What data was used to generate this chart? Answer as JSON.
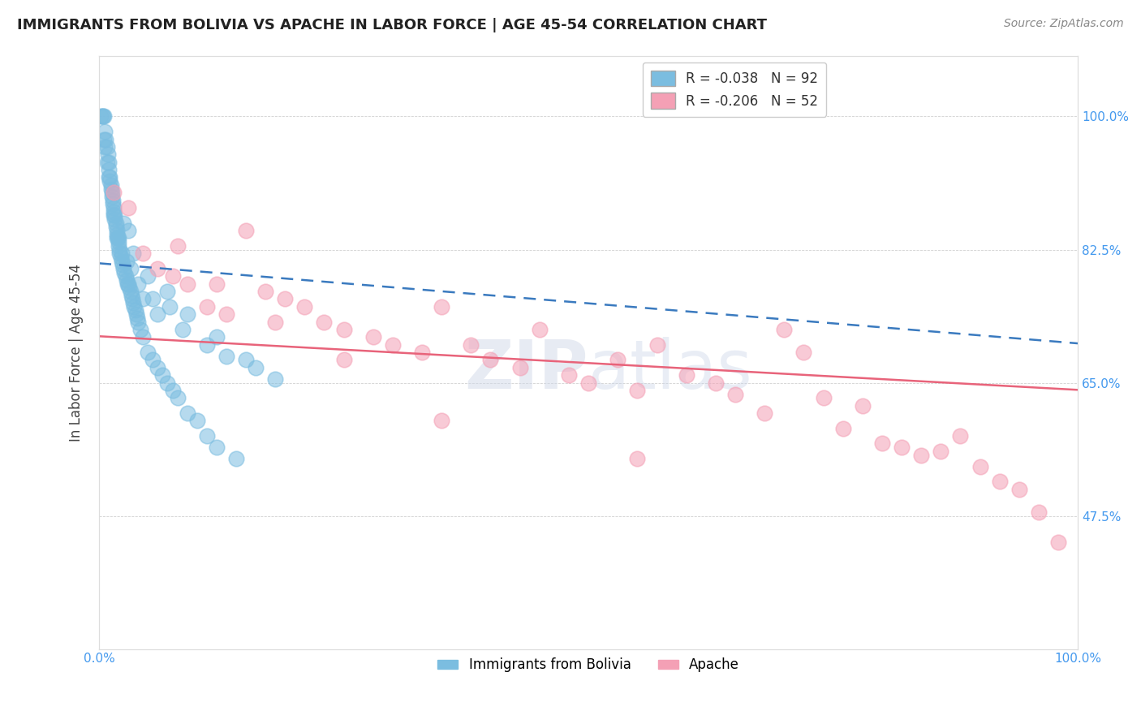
{
  "title": "IMMIGRANTS FROM BOLIVIA VS APACHE IN LABOR FORCE | AGE 45-54 CORRELATION CHART",
  "source": "Source: ZipAtlas.com",
  "ylabel": "In Labor Force | Age 45-54",
  "xlim": [
    0.0,
    100.0
  ],
  "ylim": [
    30.0,
    108.0
  ],
  "y_ticks": [
    47.5,
    65.0,
    82.5,
    100.0
  ],
  "x_ticks": [
    0.0,
    100.0
  ],
  "R_bolivia": -0.038,
  "N_bolivia": 92,
  "R_apache": -0.206,
  "N_apache": 52,
  "blue_color": "#7bbde0",
  "pink_color": "#f4a0b5",
  "blue_line_color": "#3a7abf",
  "pink_line_color": "#e8637a",
  "watermark": "ZIPatlas",
  "legend_labels": [
    "Immigrants from Bolivia",
    "Apache"
  ],
  "bolivia_x": [
    0.2,
    0.3,
    0.4,
    0.5,
    0.6,
    0.7,
    0.8,
    0.9,
    1.0,
    1.0,
    1.1,
    1.1,
    1.2,
    1.2,
    1.3,
    1.3,
    1.4,
    1.4,
    1.5,
    1.5,
    1.6,
    1.6,
    1.7,
    1.7,
    1.8,
    1.8,
    1.9,
    2.0,
    2.0,
    2.1,
    2.1,
    2.2,
    2.3,
    2.4,
    2.5,
    2.6,
    2.7,
    2.8,
    2.9,
    3.0,
    3.1,
    3.2,
    3.3,
    3.4,
    3.5,
    3.6,
    3.7,
    3.8,
    3.9,
    4.0,
    4.2,
    4.5,
    5.0,
    5.5,
    6.0,
    6.5,
    7.0,
    7.5,
    8.0,
    9.0,
    10.0,
    11.0,
    12.0,
    14.0,
    3.0,
    2.5,
    1.5,
    1.0,
    0.8,
    0.6,
    0.5,
    2.0,
    3.5,
    5.0,
    7.0,
    9.0,
    12.0,
    15.0,
    4.5,
    6.0,
    8.5,
    11.0,
    13.0,
    16.0,
    18.0,
    4.0,
    2.3,
    1.8,
    3.2,
    2.8,
    5.5,
    7.2
  ],
  "bolivia_y": [
    100.0,
    100.0,
    100.0,
    100.0,
    98.0,
    97.0,
    96.0,
    95.0,
    94.0,
    93.0,
    92.0,
    91.5,
    91.0,
    90.5,
    90.0,
    89.5,
    89.0,
    88.5,
    88.0,
    87.5,
    87.0,
    86.5,
    86.0,
    85.5,
    85.0,
    84.5,
    84.0,
    83.5,
    83.0,
    82.5,
    82.0,
    81.5,
    81.0,
    80.5,
    80.0,
    79.5,
    79.0,
    78.5,
    78.0,
    78.0,
    77.5,
    77.0,
    76.5,
    76.0,
    75.5,
    75.0,
    74.5,
    74.0,
    73.5,
    73.0,
    72.0,
    71.0,
    69.0,
    68.0,
    67.0,
    66.0,
    65.0,
    64.0,
    63.0,
    61.0,
    60.0,
    58.0,
    56.5,
    55.0,
    85.0,
    86.0,
    87.0,
    92.0,
    94.0,
    96.0,
    97.0,
    84.0,
    82.0,
    79.0,
    77.0,
    74.0,
    71.0,
    68.0,
    76.0,
    74.0,
    72.0,
    70.0,
    68.5,
    67.0,
    65.5,
    78.0,
    82.0,
    84.0,
    80.0,
    81.0,
    76.0,
    75.0
  ],
  "apache_x": [
    1.5,
    3.0,
    4.5,
    6.0,
    7.5,
    9.0,
    11.0,
    13.0,
    15.0,
    17.0,
    19.0,
    21.0,
    23.0,
    25.0,
    28.0,
    30.0,
    33.0,
    35.0,
    38.0,
    40.0,
    43.0,
    45.0,
    48.0,
    50.0,
    53.0,
    55.0,
    57.0,
    60.0,
    63.0,
    65.0,
    68.0,
    70.0,
    72.0,
    74.0,
    76.0,
    78.0,
    80.0,
    82.0,
    84.0,
    86.0,
    88.0,
    90.0,
    92.0,
    94.0,
    96.0,
    98.0,
    8.0,
    12.0,
    18.0,
    25.0,
    35.0,
    55.0
  ],
  "apache_y": [
    90.0,
    88.0,
    82.0,
    80.0,
    79.0,
    78.0,
    75.0,
    74.0,
    85.0,
    77.0,
    76.0,
    75.0,
    73.0,
    72.0,
    71.0,
    70.0,
    69.0,
    75.0,
    70.0,
    68.0,
    67.0,
    72.0,
    66.0,
    65.0,
    68.0,
    64.0,
    70.0,
    66.0,
    65.0,
    63.5,
    61.0,
    72.0,
    69.0,
    63.0,
    59.0,
    62.0,
    57.0,
    56.5,
    55.5,
    56.0,
    58.0,
    54.0,
    52.0,
    51.0,
    48.0,
    44.0,
    83.0,
    78.0,
    73.0,
    68.0,
    60.0,
    55.0
  ]
}
